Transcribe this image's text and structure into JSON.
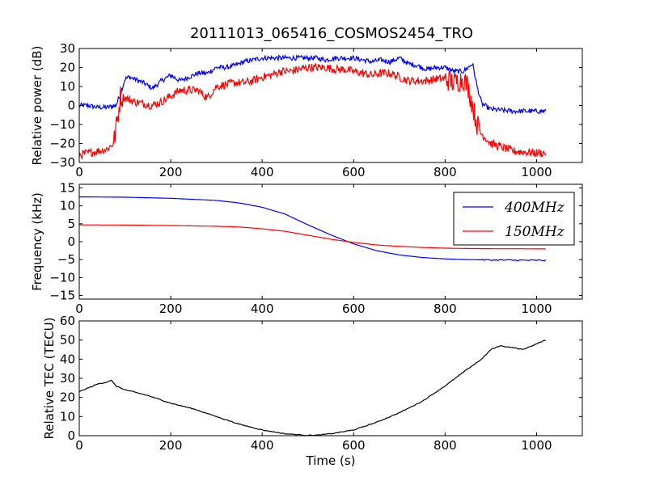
{
  "chart_data": {
    "title": "20111013_065416_COSMOS2454_TRO",
    "panels": [
      {
        "type": "line",
        "ylabel": "Relative power (dB)",
        "xlim": [
          0,
          1100
        ],
        "ylim": [
          -30,
          30
        ],
        "xticks": [
          "0",
          "200",
          "400",
          "600",
          "800",
          "1000"
        ],
        "yticks": [
          "30",
          "20",
          "10",
          "0",
          "−10",
          "−20",
          "−30"
        ],
        "series": [
          {
            "name": "400 MHz power",
            "color": "#0000ff",
            "x": [
              0,
              20,
              40,
              60,
              80,
              90,
              100,
              110,
              120,
              140,
              160,
              180,
              200,
              220,
              240,
              260,
              280,
              300,
              320,
              340,
              360,
              380,
              400,
              420,
              440,
              460,
              480,
              500,
              520,
              540,
              560,
              580,
              600,
              620,
              640,
              660,
              680,
              700,
              720,
              740,
              760,
              780,
              800,
              820,
              840,
              850,
              860,
              870,
              880,
              900,
              950,
              1000,
              1020
            ],
            "values": [
              0,
              0,
              -1,
              -1,
              0,
              6,
              14,
              15,
              14,
              12,
              9,
              13,
              16,
              13,
              15,
              17,
              17,
              20,
              20,
              21,
              23,
              24,
              25,
              25,
              25,
              25,
              25,
              25,
              25,
              24,
              25,
              25,
              25,
              24,
              23,
              24,
              23,
              25,
              22,
              21,
              19,
              20,
              20,
              18,
              18,
              20,
              22,
              10,
              1,
              -2,
              -3,
              -3,
              -3
            ]
          },
          {
            "name": "150 MHz power",
            "color": "#ff0000",
            "x": [
              0,
              20,
              40,
              60,
              75,
              85,
              90,
              100,
              120,
              140,
              160,
              180,
              200,
              220,
              240,
              260,
              280,
              300,
              320,
              340,
              360,
              380,
              400,
              420,
              440,
              460,
              480,
              500,
              520,
              540,
              560,
              580,
              600,
              620,
              640,
              660,
              680,
              700,
              720,
              740,
              760,
              780,
              800,
              820,
              840,
              850,
              860,
              870,
              880,
              900,
              950,
              1000,
              1020
            ],
            "values": [
              -26,
              -25,
              -24,
              -23,
              -20,
              -5,
              5,
              4,
              2,
              1,
              0,
              2,
              5,
              8,
              8,
              8,
              4,
              10,
              11,
              12,
              12,
              13,
              15,
              16,
              18,
              18,
              19,
              20,
              20,
              20,
              19,
              19,
              18,
              17,
              16,
              17,
              17,
              15,
              13,
              13,
              13,
              14,
              14,
              12,
              14,
              10,
              0,
              -10,
              -15,
              -20,
              -24,
              -25,
              -25
            ]
          }
        ]
      },
      {
        "type": "line",
        "ylabel": "Frequency (kHz)",
        "xlim": [
          0,
          1100
        ],
        "ylim": [
          -16,
          16
        ],
        "xticks": [
          "0",
          "200",
          "400",
          "600",
          "800",
          "1000"
        ],
        "yticks": [
          "15",
          "10",
          "5",
          "0",
          "−5",
          "−10",
          "−15"
        ],
        "legend": [
          "$400MHz$",
          "$150MHz$"
        ],
        "legend_position": "upper-right",
        "series": [
          {
            "name": "$400MHz$",
            "color": "#0000ff",
            "x": [
              0,
              100,
              200,
              300,
              350,
              400,
              450,
              500,
              550,
              600,
              650,
              700,
              750,
              800,
              850,
              900,
              950,
              1000,
              1020
            ],
            "values": [
              12.5,
              12.4,
              12.1,
              11.5,
              10.8,
              9.6,
              7.7,
              4.7,
              1.9,
              -0.6,
              -2.5,
              -3.7,
              -4.4,
              -4.8,
              -5.0,
              -5.1,
              -5.15,
              -5.2,
              -5.2
            ]
          },
          {
            "name": "$150MHz$",
            "color": "#ff0000",
            "x": [
              0,
              100,
              200,
              300,
              350,
              400,
              450,
              500,
              550,
              600,
              650,
              700,
              750,
              800,
              850,
              900,
              950,
              1000,
              1020
            ],
            "values": [
              4.7,
              4.65,
              4.5,
              4.3,
              4.1,
              3.6,
              2.9,
              1.8,
              0.7,
              -0.2,
              -0.9,
              -1.3,
              -1.6,
              -1.8,
              -1.9,
              -1.95,
              -1.95,
              -2.0,
              -2.0
            ]
          }
        ]
      },
      {
        "type": "line",
        "xlabel": "Time (s)",
        "ylabel": "Relative TEC (TECU)",
        "xlim": [
          0,
          1100
        ],
        "ylim": [
          0,
          60
        ],
        "xticks": [
          "0",
          "200",
          "400",
          "600",
          "800",
          "1000"
        ],
        "yticks": [
          "60",
          "50",
          "40",
          "30",
          "20",
          "10",
          "0"
        ],
        "series": [
          {
            "name": "Relative TEC",
            "color": "#000000",
            "x": [
              0,
              20,
              40,
              60,
              70,
              80,
              100,
              150,
              200,
              250,
              300,
              350,
              400,
              450,
              480,
              500,
              520,
              550,
              600,
              650,
              700,
              750,
              800,
              850,
              880,
              900,
              920,
              950,
              970,
              1000,
              1020
            ],
            "values": [
              23,
              25,
              27,
              28,
              29,
              26,
              24,
              21,
              17,
              14,
              10,
              6,
              3,
              1,
              0.5,
              0.2,
              0.3,
              1,
              3,
              7,
              12,
              18,
              26,
              35,
              40,
              45,
              47,
              46,
              45,
              48,
              50
            ]
          }
        ]
      }
    ]
  }
}
